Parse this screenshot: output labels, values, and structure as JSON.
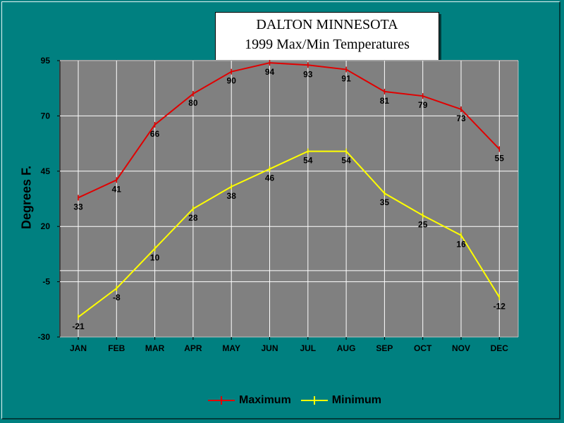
{
  "chart_data": {
    "type": "line",
    "title_line1": "DALTON MINNESOTA",
    "title_line2": "1999 Max/Min Temperatures",
    "ylabel": "Degrees F.",
    "xlabel": "",
    "categories": [
      "JAN",
      "FEB",
      "MAR",
      "APR",
      "MAY",
      "JUN",
      "JUL",
      "AUG",
      "SEP",
      "OCT",
      "NOV",
      "DEC"
    ],
    "yticks": [
      95,
      70,
      45,
      20,
      -5,
      -30
    ],
    "ylim": [
      -30,
      95
    ],
    "grid": true,
    "legend_position": "bottom",
    "series": [
      {
        "name": "Maximum",
        "color": "#e00000",
        "values": [
          33,
          41,
          66,
          80,
          90,
          94,
          93,
          91,
          81,
          79,
          73,
          55
        ]
      },
      {
        "name": "Minimum",
        "color": "#ffff00",
        "values": [
          -21,
          -8,
          10,
          28,
          38,
          46,
          54,
          54,
          35,
          25,
          16,
          -12
        ]
      }
    ]
  }
}
